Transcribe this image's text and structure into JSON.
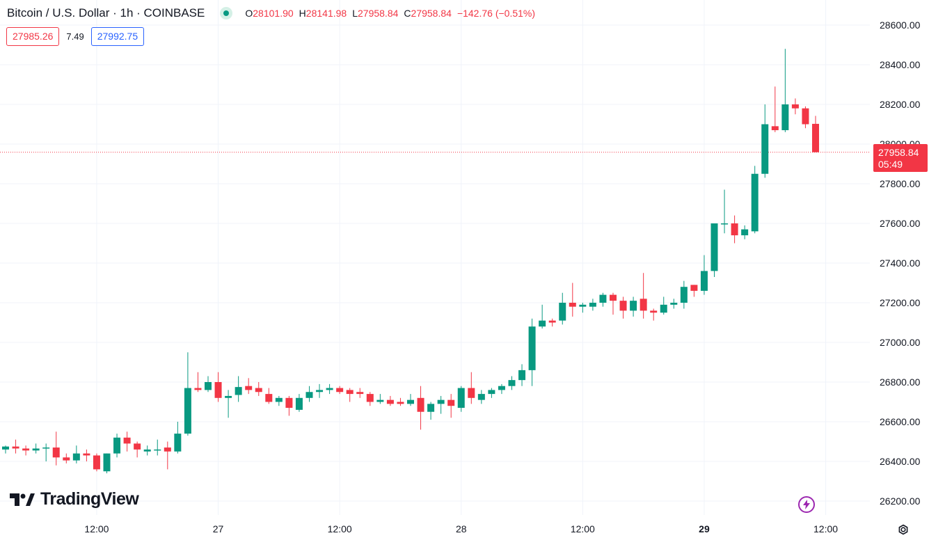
{
  "header": {
    "symbol": "Bitcoin / U.S. Dollar · 1h · COINBASE",
    "o_key": "O",
    "o": "28101.90",
    "h_key": "H",
    "h": "28141.98",
    "l_key": "L",
    "l": "27958.84",
    "c_key": "C",
    "c": "27958.84",
    "change": "−142.76 (−0.51%)"
  },
  "quote": {
    "sell": "27985.26",
    "spread": "7.49",
    "buy": "27992.75"
  },
  "last_price": {
    "price": "27958.84",
    "countdown": "05:49"
  },
  "brand": {
    "logo_text": "TradingView"
  },
  "icons": {
    "live": "live-status-icon",
    "bolt": "bolt-icon",
    "settings": "settings-gear-icon",
    "logo": "tradingview-logo-icon"
  },
  "colors": {
    "up": "#089981",
    "down": "#f23645",
    "grid": "#f0f3fa",
    "text": "#131722",
    "bid": "#2962ff"
  },
  "chart_data": {
    "type": "candlestick",
    "title": "Bitcoin / U.S. Dollar · 1h · COINBASE",
    "ylim": [
      26150,
      28680
    ],
    "y_ticks": [
      26200,
      26400,
      26600,
      26800,
      27000,
      27200,
      27400,
      27600,
      27800,
      28000,
      28200,
      28400,
      28600
    ],
    "y_tick_labels": [
      "26200.00",
      "26400.00",
      "26600.00",
      "26800.00",
      "27000.00",
      "27200.00",
      "27400.00",
      "27600.00",
      "27800.00",
      "28000.00",
      "28200.00",
      "28400.00",
      "28600.00"
    ],
    "x_ticks": [
      {
        "label": "12:00",
        "index": 9,
        "bold": false
      },
      {
        "label": "27",
        "index": 21,
        "bold": false
      },
      {
        "label": "12:00",
        "index": 33,
        "bold": false
      },
      {
        "label": "28",
        "index": 45,
        "bold": false
      },
      {
        "label": "12:00",
        "index": 57,
        "bold": false
      },
      {
        "label": "29",
        "index": 69,
        "bold": true
      },
      {
        "label": "12:00",
        "index": 81,
        "bold": false
      }
    ],
    "last_price": 27958.84,
    "candles": [
      [
        26460,
        26480,
        26440,
        26475
      ],
      [
        26475,
        26510,
        26440,
        26465
      ],
      [
        26465,
        26480,
        26430,
        26455
      ],
      [
        26455,
        26490,
        26440,
        26465
      ],
      [
        26465,
        26490,
        26400,
        26470
      ],
      [
        26470,
        26550,
        26380,
        26420
      ],
      [
        26420,
        26440,
        26390,
        26405
      ],
      [
        26405,
        26480,
        26390,
        26440
      ],
      [
        26440,
        26460,
        26400,
        26430
      ],
      [
        26430,
        26440,
        26350,
        26360
      ],
      [
        26350,
        26440,
        26340,
        26440
      ],
      [
        26440,
        26540,
        26420,
        26520
      ],
      [
        26520,
        26550,
        26450,
        26490
      ],
      [
        26490,
        26500,
        26420,
        26460
      ],
      [
        26450,
        26480,
        26430,
        26460
      ],
      [
        26460,
        26510,
        26430,
        26460
      ],
      [
        26470,
        26500,
        26360,
        26450
      ],
      [
        26450,
        26600,
        26440,
        26540
      ],
      [
        26540,
        26950,
        26530,
        26770
      ],
      [
        26770,
        26850,
        26750,
        26760
      ],
      [
        26760,
        26830,
        26750,
        26800
      ],
      [
        26800,
        26850,
        26700,
        26720
      ],
      [
        26720,
        26760,
        26620,
        26730
      ],
      [
        26735,
        26830,
        26700,
        26775
      ],
      [
        26780,
        26820,
        26740,
        26760
      ],
      [
        26770,
        26800,
        26730,
        26750
      ],
      [
        26740,
        26770,
        26690,
        26700
      ],
      [
        26700,
        26730,
        26680,
        26720
      ],
      [
        26720,
        26730,
        26630,
        26670
      ],
      [
        26660,
        26740,
        26650,
        26720
      ],
      [
        26720,
        26780,
        26700,
        26750
      ],
      [
        26750,
        26790,
        26720,
        26760
      ],
      [
        26760,
        26790,
        26740,
        26770
      ],
      [
        26770,
        26780,
        26740,
        26750
      ],
      [
        26760,
        26770,
        26700,
        26740
      ],
      [
        26750,
        26770,
        26720,
        26740
      ],
      [
        26740,
        26750,
        26680,
        26700
      ],
      [
        26700,
        26740,
        26690,
        26710
      ],
      [
        26710,
        26730,
        26680,
        26690
      ],
      [
        26700,
        26720,
        26680,
        26690
      ],
      [
        26690,
        26740,
        26680,
        26710
      ],
      [
        26720,
        26780,
        26560,
        26650
      ],
      [
        26650,
        26700,
        26610,
        26690
      ],
      [
        26690,
        26730,
        26640,
        26710
      ],
      [
        26710,
        26740,
        26620,
        26680
      ],
      [
        26670,
        26780,
        26650,
        26770
      ],
      [
        26770,
        26850,
        26690,
        26720
      ],
      [
        26710,
        26760,
        26690,
        26740
      ],
      [
        26740,
        26770,
        26720,
        26760
      ],
      [
        26760,
        26790,
        26740,
        26780
      ],
      [
        26780,
        26830,
        26760,
        26810
      ],
      [
        26810,
        26890,
        26780,
        26860
      ],
      [
        26860,
        27120,
        26780,
        27080
      ],
      [
        27080,
        27190,
        27070,
        27110
      ],
      [
        27110,
        27120,
        27080,
        27100
      ],
      [
        27110,
        27250,
        27090,
        27200
      ],
      [
        27200,
        27300,
        27130,
        27180
      ],
      [
        27180,
        27200,
        27150,
        27190
      ],
      [
        27180,
        27220,
        27160,
        27200
      ],
      [
        27200,
        27250,
        27180,
        27240
      ],
      [
        27240,
        27250,
        27140,
        27210
      ],
      [
        27210,
        27230,
        27120,
        27160
      ],
      [
        27160,
        27230,
        27130,
        27210
      ],
      [
        27220,
        27350,
        27120,
        27160
      ],
      [
        27160,
        27170,
        27110,
        27150
      ],
      [
        27150,
        27230,
        27140,
        27190
      ],
      [
        27190,
        27220,
        27170,
        27200
      ],
      [
        27200,
        27310,
        27170,
        27280
      ],
      [
        27290,
        27290,
        27230,
        27260
      ],
      [
        27260,
        27440,
        27240,
        27360
      ],
      [
        27360,
        27600,
        27330,
        27600
      ],
      [
        27600,
        27770,
        27550,
        27600
      ],
      [
        27600,
        27640,
        27500,
        27540
      ],
      [
        27540,
        27590,
        27520,
        27570
      ],
      [
        27560,
        27890,
        27550,
        27850
      ],
      [
        27850,
        28200,
        27830,
        28100
      ],
      [
        28090,
        28290,
        28060,
        28070
      ],
      [
        28070,
        28480,
        28060,
        28200
      ],
      [
        28200,
        28230,
        28150,
        28180
      ],
      [
        28180,
        28190,
        28080,
        28100
      ],
      [
        28101.9,
        28141.98,
        27958.84,
        27958.84
      ]
    ]
  }
}
